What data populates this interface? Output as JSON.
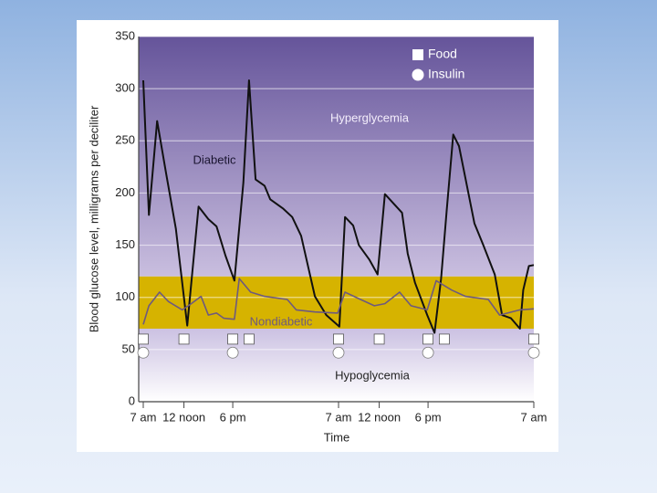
{
  "chart_data": {
    "type": "line",
    "y_label": "Blood glucose level, milligrams per deciliter",
    "x_label": "Time",
    "xlim": [
      0,
      48
    ],
    "xticks": [
      {
        "value": 0,
        "label": "7 am"
      },
      {
        "value": 5,
        "label": "12 noon"
      },
      {
        "value": 11,
        "label": "6 pm"
      },
      {
        "value": 24,
        "label": "7 am"
      },
      {
        "value": 29,
        "label": "12 noon"
      },
      {
        "value": 35,
        "label": "6 pm"
      },
      {
        "value": 48,
        "label": "7 am"
      }
    ],
    "ylim": [
      0,
      350
    ],
    "yticks": [
      0,
      50,
      100,
      150,
      200,
      250,
      300,
      350
    ],
    "grid": true,
    "ranges": [
      {
        "name": "Hyperglycemia",
        "from": 120,
        "to": 350,
        "color_top": "#65549a",
        "color_bottom": "#c9bedf"
      },
      {
        "from": 70,
        "to": 120,
        "color_top": "#d6b300",
        "color_bottom": "#d6b300"
      },
      {
        "name": "Hypoglycemia",
        "from": 0,
        "to": 70,
        "color_top": "#cbc1e2",
        "color_bottom": "#ffffff"
      }
    ],
    "series": [
      {
        "name": "Diabetic",
        "color": "#111111",
        "x": [
          0,
          0.7,
          1.7,
          2.8,
          4.0,
          5.4,
          6.8,
          8.0,
          9.0,
          10.1,
          11.2,
          12.3,
          13.0,
          13.8,
          14.9,
          15.6,
          17.2,
          18.3,
          19.4,
          21.1,
          22.5,
          24.1,
          24.8,
          25.8,
          26.5,
          27.8,
          28.8,
          29.7,
          31.8,
          32.5,
          33.4,
          34.9,
          35.8,
          36.6,
          37.3,
          38.1,
          38.8,
          39.6,
          40.7,
          41.8,
          43.2,
          44.1,
          45.2,
          46.3,
          46.7,
          47.4,
          48
        ],
        "values": [
          308,
          179,
          269,
          219,
          166,
          73,
          187,
          175,
          168,
          140,
          116,
          210,
          308,
          213,
          207,
          194,
          185,
          177,
          159,
          101,
          83,
          72,
          177,
          169,
          150,
          136,
          122,
          199,
          181,
          142,
          114,
          83,
          66,
          118,
          184,
          256,
          245,
          214,
          171,
          150,
          122,
          83,
          80,
          70,
          107,
          130,
          131
        ]
      },
      {
        "name": "Nondiabetic",
        "color": "#6e5a7e",
        "x": [
          0,
          0.7,
          2.0,
          3.1,
          4.8,
          5.9,
          7.1,
          8.0,
          9.0,
          9.9,
          11.2,
          11.8,
          13.2,
          14.9,
          17.7,
          18.8,
          21.1,
          23.9,
          24.8,
          26.7,
          28.4,
          29.7,
          31.5,
          32.9,
          34.9,
          36.0,
          37.9,
          39.6,
          42.4,
          43.8,
          46.3,
          48
        ],
        "values": [
          74,
          92,
          105,
          96,
          88,
          94,
          101,
          83,
          85,
          80,
          79,
          118,
          105,
          101,
          98,
          88,
          86,
          85,
          105,
          98,
          92,
          94,
          105,
          92,
          88,
          116,
          107,
          101,
          98,
          83,
          88,
          89
        ]
      }
    ],
    "markers": [
      {
        "name": "Food",
        "shape": "square",
        "level": 60,
        "x": [
          0,
          5,
          11,
          13,
          24,
          29,
          35,
          37,
          48
        ]
      },
      {
        "name": "Insulin",
        "shape": "circle",
        "level": 47,
        "x": [
          0,
          11,
          24,
          35,
          48
        ]
      }
    ]
  }
}
